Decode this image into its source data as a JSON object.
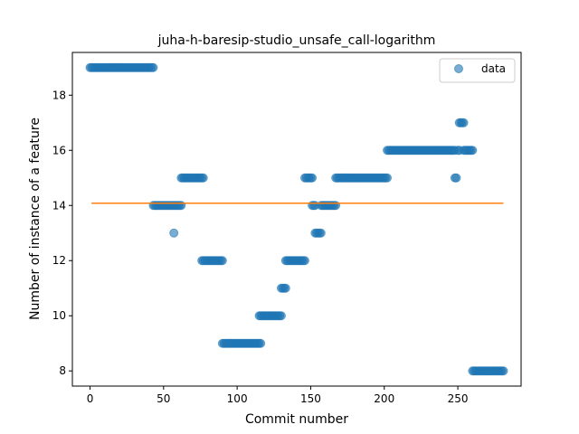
{
  "chart_data": {
    "type": "scatter",
    "title": "juha-h-baresip-studio_unsafe_call-logarithm",
    "xlabel": "Commit number",
    "ylabel": "Number of instance of a feature",
    "xlim": [
      -12,
      293
    ],
    "ylim": [
      7.45,
      19.55
    ],
    "xticks": [
      0,
      50,
      100,
      150,
      200,
      250
    ],
    "yticks": [
      8,
      10,
      12,
      14,
      16,
      18
    ],
    "legend": {
      "position": "top-right",
      "entries": [
        "data"
      ]
    },
    "colors": {
      "points": "#1f77b4",
      "fit_line": "#ff7f0e"
    },
    "series": [
      {
        "name": "data",
        "kind": "scatter",
        "runs": [
          {
            "x_start": 0,
            "x_end": 43,
            "y": 19
          },
          {
            "x_start": 43,
            "x_end": 62,
            "y": 14
          },
          {
            "x_start": 57,
            "x_end": 57,
            "y": 13
          },
          {
            "x_start": 62,
            "x_end": 77,
            "y": 15
          },
          {
            "x_start": 76,
            "x_end": 90,
            "y": 12
          },
          {
            "x_start": 90,
            "x_end": 116,
            "y": 9
          },
          {
            "x_start": 115,
            "x_end": 130,
            "y": 10
          },
          {
            "x_start": 130,
            "x_end": 133,
            "y": 11
          },
          {
            "x_start": 133,
            "x_end": 146,
            "y": 12
          },
          {
            "x_start": 146,
            "x_end": 151,
            "y": 15
          },
          {
            "x_start": 151,
            "x_end": 153,
            "y": 14
          },
          {
            "x_start": 153,
            "x_end": 157,
            "y": 13
          },
          {
            "x_start": 157,
            "x_end": 167,
            "y": 14
          },
          {
            "x_start": 167,
            "x_end": 202,
            "y": 15
          },
          {
            "x_start": 202,
            "x_end": 248,
            "y": 16
          },
          {
            "x_start": 248,
            "x_end": 249,
            "y": 15
          },
          {
            "x_start": 250,
            "x_end": 251,
            "y": 16
          },
          {
            "x_start": 251,
            "x_end": 254,
            "y": 17
          },
          {
            "x_start": 254,
            "x_end": 260,
            "y": 16
          },
          {
            "x_start": 260,
            "x_end": 281,
            "y": 8
          }
        ]
      },
      {
        "kind": "line",
        "points": [
          [
            1,
            14.08
          ],
          [
            281,
            14.08
          ]
        ]
      }
    ]
  }
}
